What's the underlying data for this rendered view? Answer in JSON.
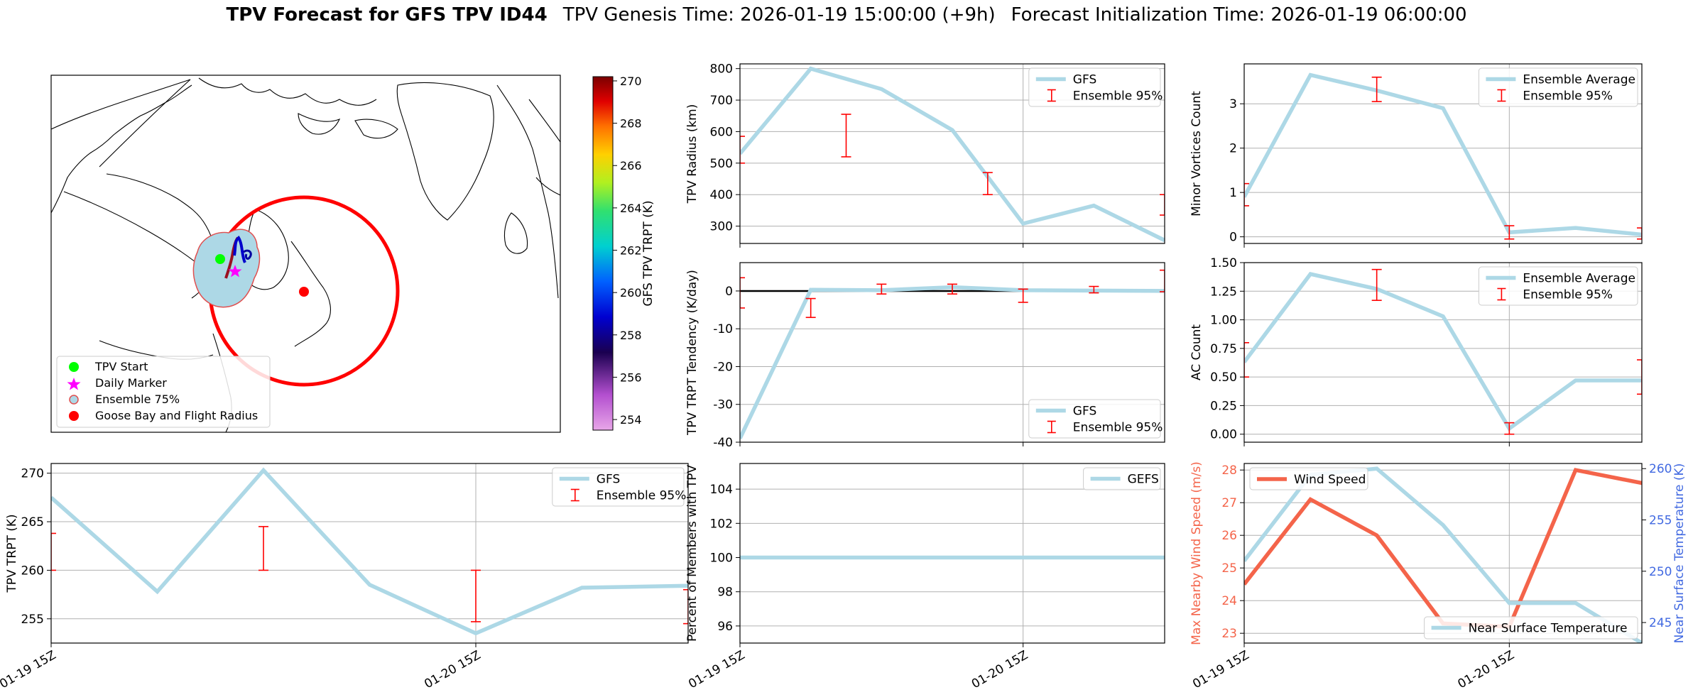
{
  "header": {
    "title_bold": "TPV Forecast for GFS TPV ID44",
    "genesis": "TPV Genesis Time: 2026-01-19 15:00:00 (+9h)",
    "init": "Forecast Initialization Time: 2026-01-19 06:00:00"
  },
  "colors": {
    "gfs_line": "#add8e6",
    "errorbar": "#ff0000",
    "wind": "#f4644a",
    "temp_axis": "#4169e1",
    "grid": "#b0b0b0"
  },
  "map": {
    "colorbar_label": "GFS TPV TRPT (K)",
    "colorbar_ticks": [
      254,
      256,
      258,
      260,
      262,
      264,
      266,
      268,
      270
    ],
    "colorbar_range": [
      253.5,
      270.2
    ],
    "legend": [
      {
        "label": "TPV Start",
        "marker": "circle",
        "color": "#00ff00"
      },
      {
        "label": "Daily Marker",
        "marker": "star",
        "color": "#ff00ff"
      },
      {
        "label": "Ensemble 75%",
        "marker": "circle-outline",
        "color": "#add8e6"
      },
      {
        "label": "Goose Bay and Flight Radius",
        "marker": "circle",
        "color": "#ff0000"
      }
    ]
  },
  "chart_data": [
    {
      "id": "radius",
      "type": "line",
      "ylabel": "TPV Radius (km)",
      "ylim": [
        245,
        815
      ],
      "yticks": [
        300,
        400,
        500,
        600,
        700,
        800
      ],
      "x": [
        0,
        1,
        2,
        3,
        4,
        5,
        6
      ],
      "xlim": [
        0,
        6
      ],
      "xtick_positions": [
        0,
        4
      ],
      "xtick_labels": [
        "01-19 15Z",
        "01-20 15Z"
      ],
      "show_xticklabels": false,
      "legend": [
        "GFS",
        "Ensemble 95%"
      ],
      "legend_pos": "upper-right",
      "series": [
        {
          "name": "GFS",
          "values": [
            530,
            800,
            735,
            605,
            308,
            365,
            255
          ]
        }
      ],
      "errorbars": [
        {
          "x": 0,
          "low": 500,
          "high": 585
        },
        {
          "x": 1.5,
          "low": 520,
          "high": 655
        },
        {
          "x": 3.5,
          "low": 400,
          "high": 470
        },
        {
          "x": 6,
          "low": 335,
          "high": 400
        }
      ]
    },
    {
      "id": "minor",
      "type": "line",
      "ylabel": "Minor Vortices Count",
      "ylim": [
        -0.15,
        3.9
      ],
      "yticks": [
        0,
        1,
        2,
        3
      ],
      "x": [
        0,
        1,
        2,
        3,
        4,
        5,
        6
      ],
      "xlim": [
        0,
        6
      ],
      "xtick_positions": [
        0,
        4
      ],
      "xtick_labels": [
        "01-19 15Z",
        "01-20 15Z"
      ],
      "show_xticklabels": false,
      "legend": [
        "Ensemble Average",
        "Ensemble 95%"
      ],
      "legend_pos": "upper-right",
      "series": [
        {
          "name": "Ensemble Average",
          "values": [
            0.9,
            3.65,
            3.3,
            2.9,
            0.1,
            0.2,
            0.05
          ]
        }
      ],
      "errorbars": [
        {
          "x": 0,
          "low": 0.7,
          "high": 1.2
        },
        {
          "x": 2,
          "low": 3.05,
          "high": 3.6
        },
        {
          "x": 4,
          "low": -0.05,
          "high": 0.25
        },
        {
          "x": 6,
          "low": -0.05,
          "high": 0.2
        }
      ]
    },
    {
      "id": "tendency",
      "type": "line",
      "ylabel": "TPV TRPT Tendency (K/day)",
      "ylim": [
        -40,
        7.5
      ],
      "yticks": [
        -40,
        -30,
        -20,
        -10,
        0
      ],
      "x": [
        0,
        1,
        2,
        3,
        4,
        5,
        6
      ],
      "xlim": [
        0,
        6
      ],
      "xtick_positions": [
        0,
        4
      ],
      "xtick_labels": [
        "01-19 15Z",
        "01-20 15Z"
      ],
      "show_xticklabels": false,
      "zero_line": true,
      "legend": [
        "GFS",
        "Ensemble 95%"
      ],
      "legend_pos": "lower-right",
      "series": [
        {
          "name": "GFS",
          "values": [
            -39,
            0.3,
            0.2,
            1,
            0.2,
            0.1,
            0
          ]
        }
      ],
      "errorbars": [
        {
          "x": 0,
          "low": -4.5,
          "high": 3.5
        },
        {
          "x": 1,
          "low": -7,
          "high": -2
        },
        {
          "x": 2,
          "low": -0.8,
          "high": 1.8
        },
        {
          "x": 3,
          "low": -0.8,
          "high": 1.8
        },
        {
          "x": 4,
          "low": -3,
          "high": 0.5
        },
        {
          "x": 5,
          "low": -0.5,
          "high": 1.2
        },
        {
          "x": 6,
          "low": -0.2,
          "high": 5.5
        }
      ]
    },
    {
      "id": "ac",
      "type": "line",
      "ylabel": "AC Count",
      "ylim": [
        -0.07,
        1.5
      ],
      "yticks": [
        0.0,
        0.25,
        0.5,
        0.75,
        1.0,
        1.25,
        1.5
      ],
      "ytick_labels": [
        "0.00",
        "0.25",
        "0.50",
        "0.75",
        "1.00",
        "1.25",
        "1.50"
      ],
      "x": [
        0,
        1,
        2,
        3,
        4,
        5,
        6
      ],
      "xlim": [
        0,
        6
      ],
      "xtick_positions": [
        0,
        4
      ],
      "xtick_labels": [
        "01-19 15Z",
        "01-20 15Z"
      ],
      "show_xticklabels": false,
      "legend": [
        "Ensemble Average",
        "Ensemble 95%"
      ],
      "legend_pos": "upper-right",
      "series": [
        {
          "name": "Ensemble Average",
          "values": [
            0.63,
            1.4,
            1.27,
            1.03,
            0.05,
            0.47,
            0.47
          ]
        }
      ],
      "errorbars": [
        {
          "x": 0,
          "low": 0.5,
          "high": 0.8
        },
        {
          "x": 2,
          "low": 1.17,
          "high": 1.44
        },
        {
          "x": 4,
          "low": 0.0,
          "high": 0.1
        },
        {
          "x": 6,
          "low": 0.35,
          "high": 0.65
        }
      ]
    },
    {
      "id": "trpt",
      "type": "line",
      "ylabel": "TPV TRPT (K)",
      "ylim": [
        252.5,
        271
      ],
      "yticks": [
        255,
        260,
        265,
        270
      ],
      "x": [
        0,
        1,
        2,
        3,
        4,
        5,
        6
      ],
      "xlim": [
        0,
        6
      ],
      "xtick_positions": [
        0,
        4
      ],
      "xtick_labels": [
        "01-19 15Z",
        "01-20 15Z"
      ],
      "show_xticklabels": true,
      "legend": [
        "GFS",
        "Ensemble 95%"
      ],
      "legend_pos": "upper-right",
      "series": [
        {
          "name": "GFS",
          "values": [
            267.5,
            257.8,
            270.3,
            258.5,
            253.5,
            258.2,
            258.4
          ]
        }
      ],
      "errorbars": [
        {
          "x": 0,
          "low": 260,
          "high": 263.8
        },
        {
          "x": 2,
          "low": 260,
          "high": 264.5
        },
        {
          "x": 4,
          "low": 254.7,
          "high": 260
        },
        {
          "x": 6,
          "low": 254.5,
          "high": 258
        }
      ]
    },
    {
      "id": "percent",
      "type": "line",
      "ylabel": "Percent of Members with TPV",
      "ylim": [
        95,
        105.5
      ],
      "yticks": [
        96,
        98,
        100,
        102,
        104
      ],
      "x": [
        0,
        1,
        2,
        3,
        4,
        5,
        6
      ],
      "xlim": [
        0,
        6
      ],
      "xtick_positions": [
        0,
        4
      ],
      "xtick_labels": [
        "01-19 15Z",
        "01-20 15Z"
      ],
      "show_xticklabels": true,
      "legend": [
        "GEFS"
      ],
      "legend_pos": "upper-right",
      "series": [
        {
          "name": "GEFS",
          "values": [
            100,
            100,
            100,
            100,
            100,
            100,
            100
          ]
        }
      ],
      "errorbars": []
    },
    {
      "id": "wind",
      "type": "line",
      "ylabel": "Max Nearby Wind Speed (m/s)",
      "y2label": "Near Surface Temperature (K)",
      "ylim": [
        22.7,
        28.2
      ],
      "yticks": [
        23,
        24,
        25,
        26,
        27,
        28
      ],
      "y2lim": [
        243,
        260.5
      ],
      "y2ticks": [
        245,
        250,
        255,
        260
      ],
      "x": [
        0,
        1,
        2,
        3,
        4,
        5,
        6
      ],
      "xlim": [
        0,
        6
      ],
      "xtick_positions": [
        0,
        4
      ],
      "xtick_labels": [
        "01-19 15Z",
        "01-20 15Z"
      ],
      "show_xticklabels": true,
      "legend": [
        "Wind Speed"
      ],
      "legend2": [
        "Near Surface Temperature"
      ],
      "series": [
        {
          "name": "Wind Speed",
          "axis": "left",
          "values": [
            24.5,
            27.1,
            26,
            23.3,
            23.2,
            28,
            27.6
          ]
        },
        {
          "name": "Near Surface Temperature",
          "axis": "right",
          "values": [
            251,
            259.4,
            260,
            254.5,
            246.9,
            246.9,
            243
          ]
        }
      ]
    }
  ]
}
